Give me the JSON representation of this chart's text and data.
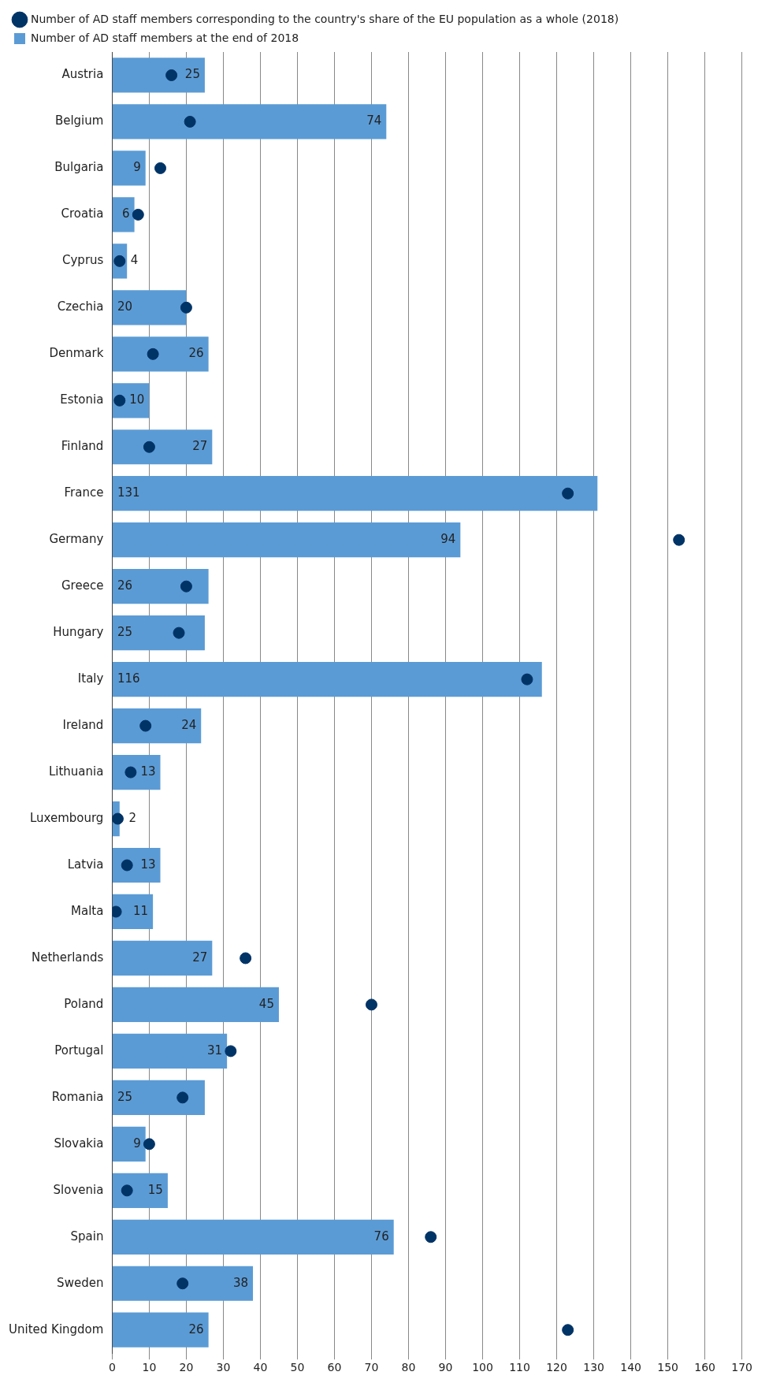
{
  "chart_data": {
    "type": "bar",
    "orientation": "horizontal",
    "categories": [
      "Austria",
      "Belgium",
      "Bulgaria",
      "Croatia",
      "Cyprus",
      "Czechia",
      "Denmark",
      "Estonia",
      "Finland",
      "France",
      "Germany",
      "Greece",
      "Hungary",
      "Italy",
      "Ireland",
      "Lithuania",
      "Luxembourg",
      "Latvia",
      "Malta",
      "Netherlands",
      "Poland",
      "Portugal",
      "Romania",
      "Slovakia",
      "Slovenia",
      "Spain",
      "Sweden",
      "United Kingdom"
    ],
    "series": [
      {
        "name": "Number of AD staff members at the end of 2018",
        "color": "#5b9bd5",
        "values": [
          25,
          74,
          9,
          6,
          4,
          20,
          26,
          10,
          27,
          131,
          94,
          26,
          25,
          116,
          24,
          13,
          2,
          13,
          11,
          27,
          45,
          31,
          25,
          9,
          15,
          76,
          38,
          26
        ],
        "value_labels": [
          "25",
          "74",
          "9",
          "6",
          "4",
          "20",
          "26",
          "10",
          "27",
          "131",
          "94",
          "26",
          "25",
          "116",
          "24",
          "13",
          "2",
          "13",
          "11",
          "27",
          "45",
          "31",
          "25",
          "9",
          "15",
          "76",
          "38",
          "26"
        ]
      },
      {
        "name": "Number of AD staff members corresponding to the country's share of the EU population as a whole (2018)",
        "type": "scatter",
        "color": "#003366",
        "marker": "circle",
        "values": [
          16,
          21,
          13,
          7,
          2,
          20,
          11,
          2,
          10,
          123,
          153,
          20,
          18,
          112,
          9,
          5,
          1.5,
          4,
          1,
          36,
          70,
          32,
          19,
          10,
          4,
          86,
          19,
          123
        ]
      }
    ],
    "xlim": [
      0,
      170
    ],
    "xticks": [
      0,
      10,
      20,
      30,
      40,
      50,
      60,
      70,
      80,
      90,
      100,
      110,
      120,
      130,
      140,
      150,
      160,
      170
    ],
    "grid": "x",
    "legend": "top"
  }
}
